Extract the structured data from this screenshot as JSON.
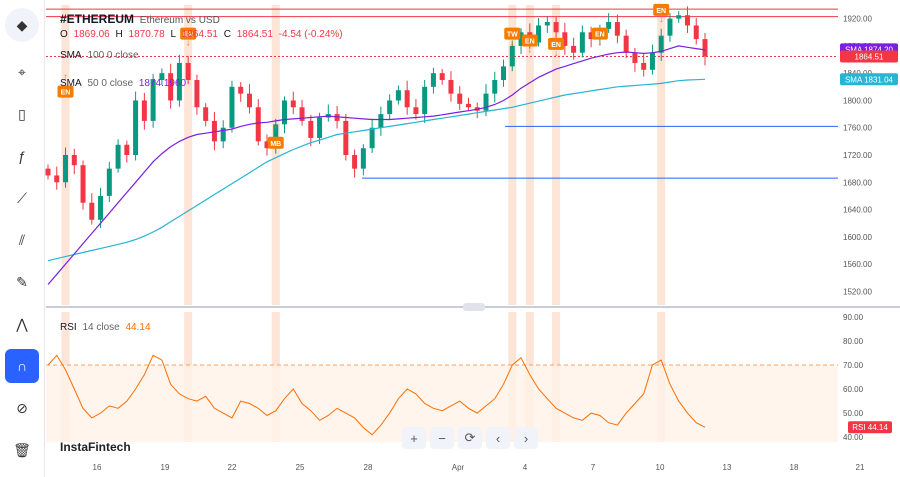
{
  "header": {
    "symbol": "#ETHEREUM",
    "description": "Ethereum vs USD",
    "ohlc": {
      "o_label": "O",
      "o": "1869.06",
      "h_label": "H",
      "h": "1870.78",
      "l_label": "L",
      "l": "1864.51",
      "c_label": "C",
      "c": "1864.51",
      "change": "-4.54 (-0.24%)"
    },
    "sma100": {
      "name": "SMA",
      "params": "100 0 close"
    },
    "sma50": {
      "name": "SMA",
      "params": "50 0 close",
      "value": "1874.1960"
    }
  },
  "rsi_legend": {
    "name": "RSI",
    "params": "14 close",
    "value": "44.14"
  },
  "brand": "InstaFintech",
  "colors": {
    "up": "#089981",
    "down": "#f23645",
    "sma50": "#7b1fe0",
    "sma100": "#26b5d4",
    "rsi": "#ff6d00",
    "highlight": "#fce4d6",
    "badge": "#f57c00",
    "resistance": "#f23645",
    "support": "#2962ff"
  },
  "sidebar": {
    "icons": [
      "ethereum-logo",
      "cursor-icon",
      "candles-icon",
      "indicator-icon",
      "drawing-icon",
      "measure-icon",
      "brush-icon",
      "patterns-icon",
      "magnet-icon",
      "eye-off-icon",
      "trash-icon"
    ]
  },
  "zoom": {
    "plus": "+",
    "minus": "−",
    "reset": "⟳",
    "left": "‹",
    "right": "›"
  },
  "chart_data": [
    {
      "type": "candlestick",
      "title": "#ETHEREUM",
      "y_ticks": [
        "1920.00",
        "1880.00",
        "1840.00",
        "1800.00",
        "1760.00",
        "1720.00",
        "1680.00",
        "1640.00",
        "1600.00",
        "1560.00",
        "1520.00"
      ],
      "ylim": [
        1500,
        1940
      ],
      "x_ticks": [
        "16",
        "19",
        "22",
        "25",
        "28",
        "Apr",
        "4",
        "7",
        "10",
        "13",
        "18",
        "21"
      ],
      "last_price": "1864.51",
      "sma50_last": "1874.20",
      "sma100_last": "1831.04",
      "sma_tag": "SMA",
      "levels": {
        "resistance": [
          1934,
          1923
        ],
        "support": [
          1762,
          1686
        ]
      },
      "close": [
        1690,
        1680,
        1720,
        1705,
        1650,
        1625,
        1660,
        1700,
        1735,
        1720,
        1800,
        1770,
        1830,
        1840,
        1800,
        1855,
        1830,
        1790,
        1770,
        1740,
        1760,
        1820,
        1810,
        1790,
        1740,
        1730,
        1765,
        1800,
        1790,
        1770,
        1745,
        1775,
        1780,
        1770,
        1720,
        1700,
        1730,
        1760,
        1780,
        1800,
        1815,
        1790,
        1780,
        1820,
        1840,
        1830,
        1810,
        1795,
        1790,
        1785,
        1810,
        1830,
        1850,
        1880,
        1900,
        1885,
        1910,
        1915,
        1900,
        1880,
        1870,
        1900,
        1890,
        1905,
        1915,
        1895,
        1870,
        1855,
        1845,
        1870,
        1895,
        1920,
        1925,
        1910,
        1890,
        1864.51
      ],
      "sma50": [
        1530,
        1545,
        1560,
        1575,
        1590,
        1605,
        1620,
        1635,
        1650,
        1665,
        1680,
        1695,
        1710,
        1722,
        1732,
        1740,
        1746,
        1750,
        1752,
        1754,
        1756,
        1758,
        1762,
        1765,
        1767,
        1768,
        1770,
        1772,
        1773,
        1774,
        1775,
        1776,
        1777,
        1776,
        1775,
        1774,
        1773,
        1772,
        1772,
        1772,
        1773,
        1774,
        1775,
        1776,
        1777,
        1779,
        1781,
        1783,
        1785,
        1787,
        1790,
        1794,
        1800,
        1808,
        1818,
        1826,
        1834,
        1840,
        1846,
        1850,
        1854,
        1858,
        1862,
        1865,
        1868,
        1870,
        1871,
        1870,
        1869,
        1870,
        1872,
        1876,
        1880,
        1878,
        1876,
        1874.2
      ],
      "sma100": [
        1565,
        1568,
        1571,
        1574,
        1577,
        1580,
        1583,
        1586,
        1589,
        1592,
        1596,
        1601,
        1607,
        1614,
        1622,
        1630,
        1638,
        1646,
        1654,
        1662,
        1670,
        1678,
        1686,
        1694,
        1702,
        1710,
        1716,
        1722,
        1728,
        1733,
        1738,
        1742,
        1746,
        1750,
        1752,
        1754,
        1756,
        1758,
        1760,
        1762,
        1764,
        1766,
        1768,
        1770,
        1772,
        1774,
        1776,
        1778,
        1780,
        1782,
        1784,
        1786,
        1788,
        1790,
        1793,
        1796,
        1799,
        1802,
        1805,
        1808,
        1810,
        1812,
        1814,
        1816,
        1818,
        1820,
        1821,
        1822,
        1823,
        1824,
        1825,
        1827,
        1829,
        1830,
        1830.5,
        1831.04
      ],
      "events": [
        {
          "label": "EN",
          "idx": 2,
          "dir": "up",
          "price": 1810
        },
        {
          "label": "EN",
          "idx": 16,
          "dir": "down",
          "price": 1895
        },
        {
          "label": "MB",
          "idx": 26,
          "dir": "up",
          "price": 1735
        },
        {
          "label": "TW",
          "idx": 53,
          "dir": "down",
          "price": 1895
        },
        {
          "label": "EN",
          "idx": 55,
          "dir": "down",
          "price": 1885
        },
        {
          "label": "EN",
          "idx": 58,
          "dir": "down",
          "price": 1880
        },
        {
          "label": "EN",
          "idx": 63,
          "dir": "down",
          "price": 1895
        },
        {
          "label": "EN",
          "idx": 70,
          "dir": "down",
          "price": 1930
        }
      ],
      "highlight_idx": [
        2,
        16,
        26,
        53,
        55,
        58,
        70
      ]
    },
    {
      "type": "line",
      "title": "RSI",
      "y_ticks": [
        "90.00",
        "80.00",
        "70.00",
        "60.00",
        "50.00",
        "40.00"
      ],
      "ylim": [
        38,
        92
      ],
      "levels": [
        70,
        30
      ],
      "last_value": "44.14",
      "values": [
        70,
        74,
        68,
        60,
        52,
        48,
        50,
        53,
        52,
        55,
        60,
        66,
        74,
        72,
        62,
        58,
        56,
        55,
        57,
        52,
        50,
        48,
        55,
        54,
        52,
        49,
        51,
        56,
        60,
        54,
        51,
        47,
        49,
        52,
        50,
        48,
        44,
        41,
        45,
        50,
        56,
        60,
        58,
        54,
        52,
        51,
        53,
        55,
        52,
        50,
        53,
        56,
        62,
        70,
        73,
        66,
        60,
        56,
        52,
        50,
        48,
        47,
        50,
        49,
        46,
        45,
        50,
        54,
        58,
        70,
        72,
        62,
        55,
        50,
        46,
        44.14
      ]
    }
  ]
}
